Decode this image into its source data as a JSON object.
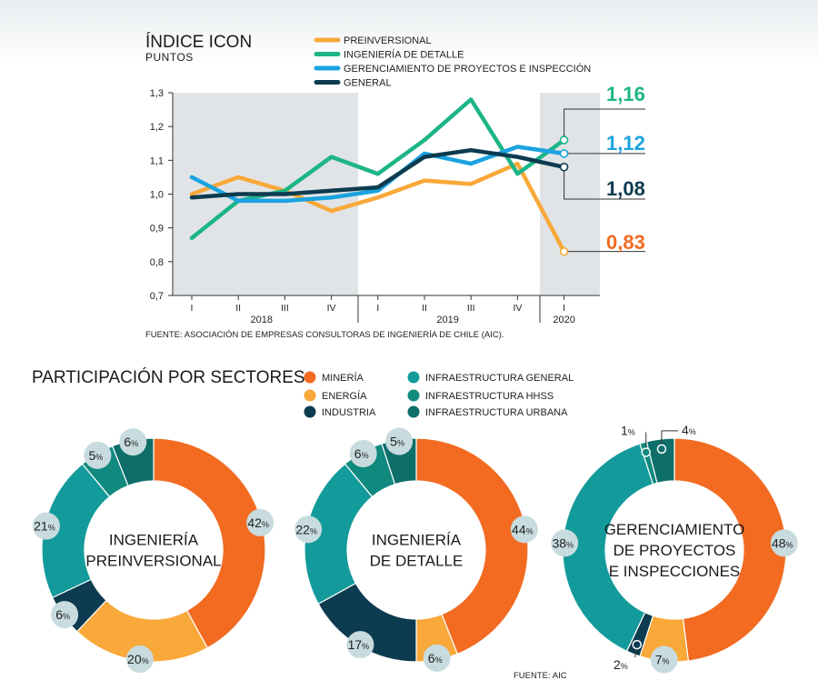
{
  "line_chart": {
    "title": "ÍNDICE ICON",
    "subtitle": "PUNTOS",
    "source": "FUENTE: ASOCIACIÓN DE EMPRESAS CONSULTORAS DE INGENIERÍA DE CHILE (AIC)."
  },
  "donut_section": {
    "title": "PARTICIPACIÓN POR SECTORES",
    "source": "FUENTE: AIC"
  },
  "chart_data": [
    {
      "type": "line",
      "title": "ÍNDICE ICON",
      "ylabel": "PUNTOS",
      "ylim": [
        0.7,
        1.3
      ],
      "yticks": [
        "0,7",
        "0,8",
        "0,9",
        "1,0",
        "1,1",
        "1,2",
        "1,3"
      ],
      "categories": [
        "I",
        "II",
        "III",
        "IV",
        "I",
        "II",
        "III",
        "IV",
        "I"
      ],
      "years": [
        "2018",
        "2019",
        "2020"
      ],
      "series": [
        {
          "name": "PREINVERSIONAL",
          "color": "#f9a83a",
          "values": [
            1.0,
            1.05,
            1.01,
            0.95,
            0.99,
            1.04,
            1.03,
            1.09,
            0.83
          ],
          "end_label": "0,83",
          "end_color": "#f26b21"
        },
        {
          "name": "INGENIERÍA DE DETALLE",
          "color": "#1db587",
          "values": [
            0.87,
            0.98,
            1.01,
            1.11,
            1.06,
            1.16,
            1.28,
            1.06,
            1.16
          ],
          "end_label": "1,16",
          "end_color": "#1db587"
        },
        {
          "name": "GERENCIAMIENTO DE PROYECTOS E INSPECCIÓN",
          "color": "#1aa3e0",
          "values": [
            1.05,
            0.98,
            0.98,
            0.99,
            1.01,
            1.12,
            1.09,
            1.14,
            1.12
          ],
          "end_label": "1,12",
          "end_color": "#1aa3e0"
        },
        {
          "name": "GENERAL",
          "color": "#0d3b4f",
          "values": [
            0.99,
            1.0,
            1.0,
            1.01,
            1.02,
            1.11,
            1.13,
            1.11,
            1.08
          ],
          "end_label": "1,08",
          "end_color": "#0d3b4f"
        }
      ]
    },
    {
      "type": "pie",
      "title": "INGENIERÍA PREINVERSIONAL",
      "center_lines": [
        "INGENIERÍA",
        "PREINVERSIONAL"
      ],
      "slices": [
        {
          "name": "MINERÍA",
          "value": 42
        },
        {
          "name": "ENERGÍA",
          "value": 20
        },
        {
          "name": "INDUSTRIA",
          "value": 6
        },
        {
          "name": "INFRAESTRUCTURA GENERAL",
          "value": 21
        },
        {
          "name": "INFRAESTRUCTURA HHSS",
          "value": 5
        },
        {
          "name": "INFRAESTRUCTURA URBANA",
          "value": 6
        }
      ]
    },
    {
      "type": "pie",
      "title": "INGENIERÍA DE DETALLE",
      "center_lines": [
        "INGENIERÍA",
        "DE DETALLE"
      ],
      "slices": [
        {
          "name": "MINERÍA",
          "value": 44
        },
        {
          "name": "ENERGÍA",
          "value": 6
        },
        {
          "name": "INDUSTRIA",
          "value": 17
        },
        {
          "name": "INFRAESTRUCTURA GENERAL",
          "value": 22
        },
        {
          "name": "INFRAESTRUCTURA HHSS",
          "value": 6
        },
        {
          "name": "INFRAESTRUCTURA URBANA",
          "value": 5
        }
      ]
    },
    {
      "type": "pie",
      "title": "GERENCIAMIENTO DE PROYECTOS E INSPECCIONES",
      "center_lines": [
        "GERENCIAMIENTO",
        "DE PROYECTOS",
        "E INSPECCIONES"
      ],
      "slices": [
        {
          "name": "MINERÍA",
          "value": 48
        },
        {
          "name": "ENERGÍA",
          "value": 7
        },
        {
          "name": "INDUSTRIA",
          "value": 2
        },
        {
          "name": "INFRAESTRUCTURA GENERAL",
          "value": 38
        },
        {
          "name": "INFRAESTRUCTURA HHSS",
          "value": 1
        },
        {
          "name": "INFRAESTRUCTURA URBANA",
          "value": 4
        }
      ]
    }
  ],
  "sector_legend": [
    {
      "name": "MINERÍA",
      "color": "#f26b21"
    },
    {
      "name": "ENERGÍA",
      "color": "#f9a83a"
    },
    {
      "name": "INDUSTRIA",
      "color": "#0d3b4f"
    },
    {
      "name": "INFRAESTRUCTURA GENERAL",
      "color": "#139a9b"
    },
    {
      "name": "INFRAESTRUCTURA HHSS",
      "color": "#10897e"
    },
    {
      "name": "INFRAESTRUCTURA URBANA",
      "color": "#0e6e6a"
    }
  ],
  "colors": {
    "shade": "#e1e4e6",
    "axis": "#333333",
    "bubble": "#c8dbdf"
  }
}
